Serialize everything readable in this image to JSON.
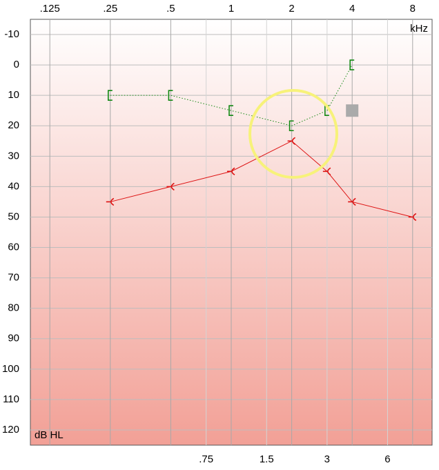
{
  "chart_data": {
    "type": "line",
    "x_scale": "log",
    "y_reversed": true,
    "grid": true,
    "xlim": [
      0.1,
      10
    ],
    "ylim": [
      -15,
      125
    ],
    "xticks": [
      {
        "value": 0.125,
        "label": ".125"
      },
      {
        "value": 0.25,
        "label": ".25"
      },
      {
        "value": 0.5,
        "label": ".5"
      },
      1,
      2,
      4,
      8
    ],
    "xticks_minor": [
      {
        "value": 0.75,
        "label": ".75"
      },
      1.5,
      3,
      6
    ],
    "yticks": [
      -10,
      0,
      10,
      20,
      30,
      40,
      50,
      60,
      70,
      80,
      90,
      100,
      110,
      120
    ],
    "x_unit": "kHz",
    "y_unit": "dB HL",
    "series": [
      {
        "color": "#dd1111",
        "line_style": "solid",
        "marker": "bone",
        "x": [
          0.25,
          0.5,
          1,
          2,
          3,
          4,
          8
        ],
        "values": [
          45,
          40,
          35,
          25,
          35,
          45,
          50
        ]
      },
      {
        "color": "#118811",
        "line_style": "dotted",
        "marker": "bracket",
        "x": [
          0.25,
          0.5,
          1,
          2,
          3,
          4
        ],
        "values": [
          10,
          10,
          15,
          20,
          15,
          0
        ]
      },
      {
        "color": "#aaaaaa",
        "line_style": "none",
        "marker": "square",
        "x": [
          4
        ],
        "values": [
          15
        ]
      }
    ]
  }
}
